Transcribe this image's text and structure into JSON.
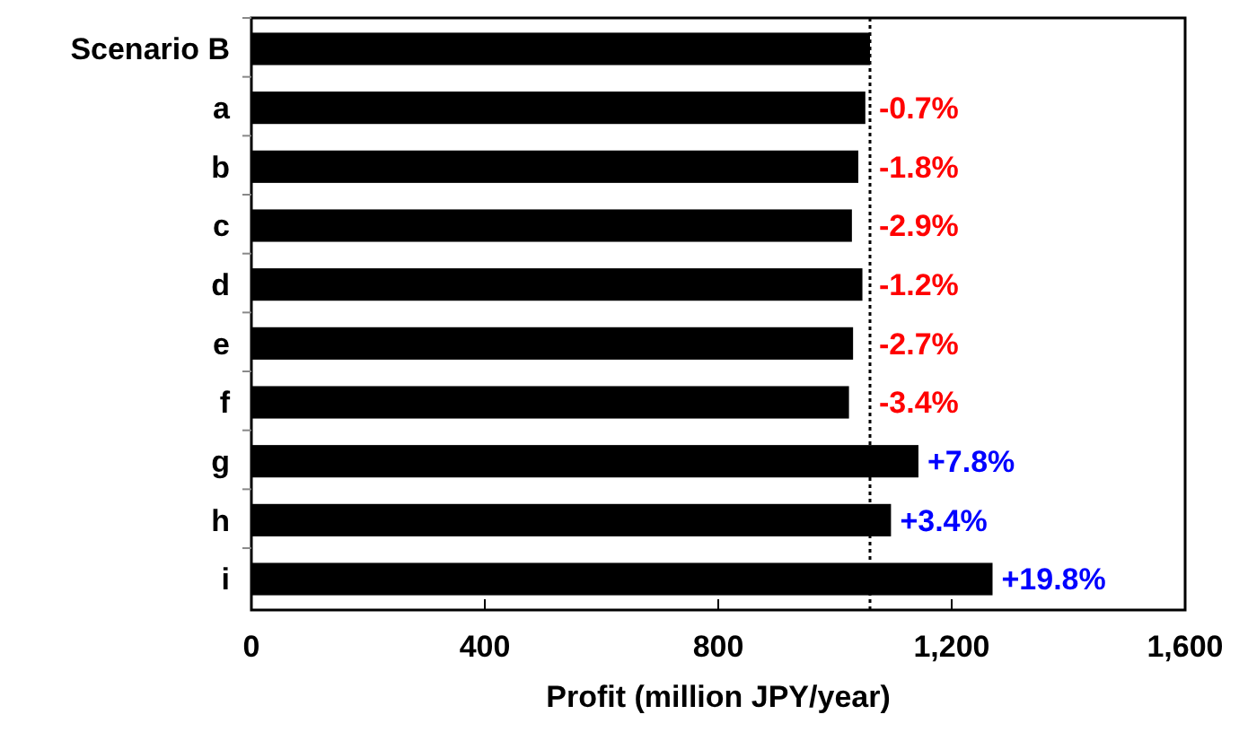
{
  "chart_data": {
    "type": "bar",
    "orientation": "horizontal",
    "xlabel": "Profit (million JPY/year)",
    "categories": [
      "Scenario B",
      "a",
      "b",
      "c",
      "d",
      "e",
      "f",
      "g",
      "h",
      "i"
    ],
    "values": [
      1060,
      1052,
      1040,
      1029,
      1047,
      1031,
      1024,
      1143,
      1096,
      1270
    ],
    "color": "#000000",
    "annotations": [
      {
        "text": "-0.7%",
        "x": 1052,
        "y": "a"
      },
      {
        "text": "-1.8%",
        "x": 1040,
        "y": "b"
      },
      {
        "text": "-2.9%",
        "x": 1029,
        "y": "c"
      },
      {
        "text": "-1.2%",
        "x": 1047,
        "y": "d"
      },
      {
        "text": "-2.7%",
        "x": 1031,
        "y": "e"
      },
      {
        "text": "-3.4%",
        "x": 1024,
        "y": "f"
      },
      {
        "text": "+7.8%",
        "x": 1143,
        "y": "g"
      },
      {
        "text": "+3.4%",
        "x": 1096,
        "y": "h"
      },
      {
        "text": "+19.8%",
        "x": 1270,
        "y": "i"
      }
    ],
    "xlim": [
      0,
      1600
    ],
    "xticks": [
      0,
      {
        "value": 400,
        "label": "400"
      },
      {
        "value": 800,
        "label": "800"
      },
      {
        "value": 1200,
        "label": "1,200"
      },
      {
        "value": 1600,
        "label": "1,600"
      }
    ],
    "ref_lines": [
      {
        "axis": "x",
        "value": 1060,
        "line_style": "dotted",
        "color": "#000000"
      }
    ]
  }
}
